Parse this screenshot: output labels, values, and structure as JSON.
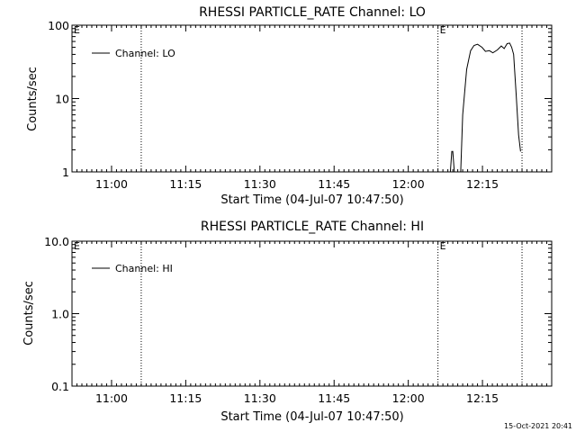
{
  "footer": {
    "timestamp": "15-Oct-2021 20:41"
  },
  "chart_data": [
    {
      "type": "line",
      "title": "RHESSI PARTICLE_RATE Channel: LO",
      "xlabel": "Start Time (04-Jul-07 10:47:50)",
      "ylabel": "Counts/sec",
      "x_range_minutes": [
        "10:52",
        "12:29"
      ],
      "x_ticks": [
        "11:00",
        "11:15",
        "11:30",
        "11:45",
        "12:00",
        "12:15"
      ],
      "y_scale": "log",
      "ylim": [
        1,
        100
      ],
      "y_ticks": [
        "1",
        "10",
        "100"
      ],
      "legend": {
        "placement": "top-left",
        "label": "Channel: LO"
      },
      "markers": [
        {
          "time": "10:52",
          "label": "E"
        },
        {
          "time": "11:06",
          "label": ""
        },
        {
          "time": "12:06",
          "label": "E"
        },
        {
          "time": "12:23",
          "label": ""
        }
      ],
      "series": [
        {
          "name": "Channel: LO",
          "color": "#000000",
          "x": [
            "12:08.5",
            "12:08.8",
            "12:09.0",
            "12:09.3",
            "12:10.6",
            "12:11.0",
            "12:11.8",
            "12:12.6",
            "12:13.3",
            "12:14.0",
            "12:14.9",
            "12:15.6",
            "12:16.4",
            "12:17.1",
            "12:18.0",
            "12:18.8",
            "12:19.4",
            "12:20.0",
            "12:20.5",
            "12:20.9",
            "12:21.3",
            "12:21.8",
            "12:22.3",
            "12:22.7"
          ],
          "y": [
            1,
            1.9,
            1.9,
            1,
            1,
            6,
            25,
            45,
            53,
            55,
            50,
            44,
            45,
            42,
            46,
            52,
            48,
            56,
            57,
            50,
            40,
            12,
            3.2,
            1.9
          ]
        }
      ]
    },
    {
      "type": "line",
      "title": "RHESSI PARTICLE_RATE Channel: HI",
      "xlabel": "Start Time (04-Jul-07 10:47:50)",
      "ylabel": "Counts/sec",
      "x_range_minutes": [
        "10:52",
        "12:29"
      ],
      "x_ticks": [
        "11:00",
        "11:15",
        "11:30",
        "11:45",
        "12:00",
        "12:15"
      ],
      "y_scale": "log",
      "ylim": [
        0.1,
        10
      ],
      "y_ticks": [
        "0.1",
        "1.0",
        "10.0"
      ],
      "legend": {
        "placement": "top-left",
        "label": "Channel: HI"
      },
      "markers": [
        {
          "time": "10:52",
          "label": "E"
        },
        {
          "time": "11:06",
          "label": ""
        },
        {
          "time": "12:06",
          "label": "E"
        },
        {
          "time": "12:23",
          "label": ""
        }
      ],
      "series": [
        {
          "name": "Channel: HI",
          "color": "#000000",
          "x": [],
          "y": []
        }
      ]
    }
  ]
}
